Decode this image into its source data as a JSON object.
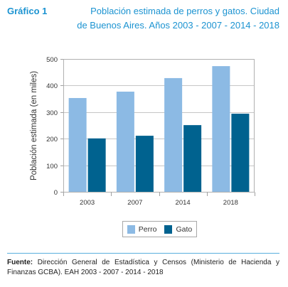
{
  "header": {
    "label": "Gráfico 1"
  },
  "chart_data": {
    "type": "bar",
    "title": "Población estimada de perros y gatos. Ciudad\nde Buenos Aires. Años 2003 - 2007 - 2014 - 2018",
    "ylabel": "Población estimada (en miles)",
    "ylim": [
      0,
      500
    ],
    "yticks": [
      0,
      100,
      200,
      300,
      400,
      500
    ],
    "categories": [
      "2003",
      "2007",
      "2014",
      "2018"
    ],
    "series": [
      {
        "name": "Perro",
        "color": "#8cbae4",
        "values": [
          353,
          377,
          428,
          473
        ]
      },
      {
        "name": "Gato",
        "color": "#00628f",
        "values": [
          201,
          211,
          251,
          294
        ]
      }
    ],
    "grid": true,
    "legend": "bottom-center"
  },
  "footer": {
    "source_label": "Fuente:",
    "source_text": "Dirección General de Estadística y Censos (Ministerio de Hacienda y Finanzas GCBA). EAH 2003 - 2007 - 2014 - 2018"
  },
  "colors": {
    "accent": "#1b93d1",
    "rule": "#5aafde",
    "text": "#222222"
  }
}
